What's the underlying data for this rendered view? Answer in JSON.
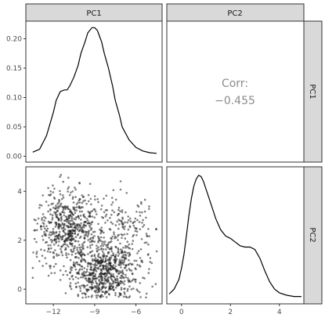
{
  "chart_data": {
    "type": "pairs",
    "variables": [
      "PC1",
      "PC2"
    ],
    "correlation": {
      "label": "Corr:",
      "value": "−0.455"
    },
    "axes": {
      "PC1": {
        "lim": [
          -14.0,
          -4.1
        ],
        "ticks": [
          -12,
          -9,
          -6
        ],
        "tick_labels": [
          "−12",
          "−9",
          "−6"
        ]
      },
      "PC2": {
        "lim": [
          -0.6,
          5.0
        ],
        "ticks": [
          0,
          2,
          4
        ],
        "tick_labels": [
          "0",
          "2",
          "4"
        ]
      },
      "density_PC1": {
        "lim": [
          -0.01,
          0.23
        ],
        "ticks": [
          0.0,
          0.05,
          0.1,
          0.15,
          0.2
        ],
        "tick_labels": [
          "0.00",
          "0.05",
          "0.10",
          "0.15",
          "0.20"
        ]
      }
    },
    "density_PC1": {
      "x": [
        -13.5,
        -13.0,
        -12.5,
        -12.0,
        -11.8,
        -11.5,
        -11.2,
        -11.0,
        -10.8,
        -10.5,
        -10.2,
        -10.0,
        -9.7,
        -9.5,
        -9.2,
        -9.0,
        -8.8,
        -8.5,
        -8.3,
        -8.0,
        -7.7,
        -7.5,
        -7.2,
        -7.0,
        -6.5,
        -6.0,
        -5.5,
        -5.0,
        -4.5
      ],
      "y": [
        0.007,
        0.012,
        0.035,
        0.075,
        0.095,
        0.11,
        0.113,
        0.113,
        0.12,
        0.135,
        0.155,
        0.175,
        0.195,
        0.21,
        0.219,
        0.219,
        0.214,
        0.195,
        0.175,
        0.15,
        0.12,
        0.095,
        0.07,
        0.05,
        0.028,
        0.015,
        0.009,
        0.006,
        0.005
      ]
    },
    "density_PC2": {
      "x": [
        -0.5,
        -0.3,
        -0.1,
        0.0,
        0.1,
        0.2,
        0.3,
        0.4,
        0.5,
        0.6,
        0.7,
        0.8,
        0.9,
        1.0,
        1.2,
        1.4,
        1.6,
        1.8,
        2.0,
        2.2,
        2.4,
        2.6,
        2.8,
        3.0,
        3.2,
        3.4,
        3.6,
        3.8,
        4.0,
        4.3,
        4.6,
        4.9
      ],
      "y": [
        0.03,
        0.07,
        0.15,
        0.24,
        0.35,
        0.5,
        0.66,
        0.8,
        0.9,
        0.96,
        0.99,
        0.98,
        0.94,
        0.88,
        0.76,
        0.64,
        0.55,
        0.5,
        0.48,
        0.45,
        0.42,
        0.41,
        0.41,
        0.39,
        0.32,
        0.22,
        0.13,
        0.07,
        0.04,
        0.02,
        0.01,
        0.01
      ]
    },
    "scatter": {
      "n_points": 1500,
      "clusters": [
        {
          "cx": -11.0,
          "cy": 2.5,
          "sx": 1.1,
          "sy": 0.8,
          "weight": 0.38
        },
        {
          "cx": -8.3,
          "cy": 0.6,
          "sx": 1.1,
          "sy": 0.7,
          "weight": 0.5
        },
        {
          "cx": -7.0,
          "cy": 2.2,
          "sx": 1.3,
          "sy": 1.0,
          "weight": 0.12
        }
      ],
      "color": "#1a1a1a",
      "opacity": 0.55
    },
    "colors": {
      "strip_fill": "#d9d9d9",
      "panel_border": "#333333",
      "line": "#000000",
      "corr_text": "#8c8c8c"
    }
  }
}
